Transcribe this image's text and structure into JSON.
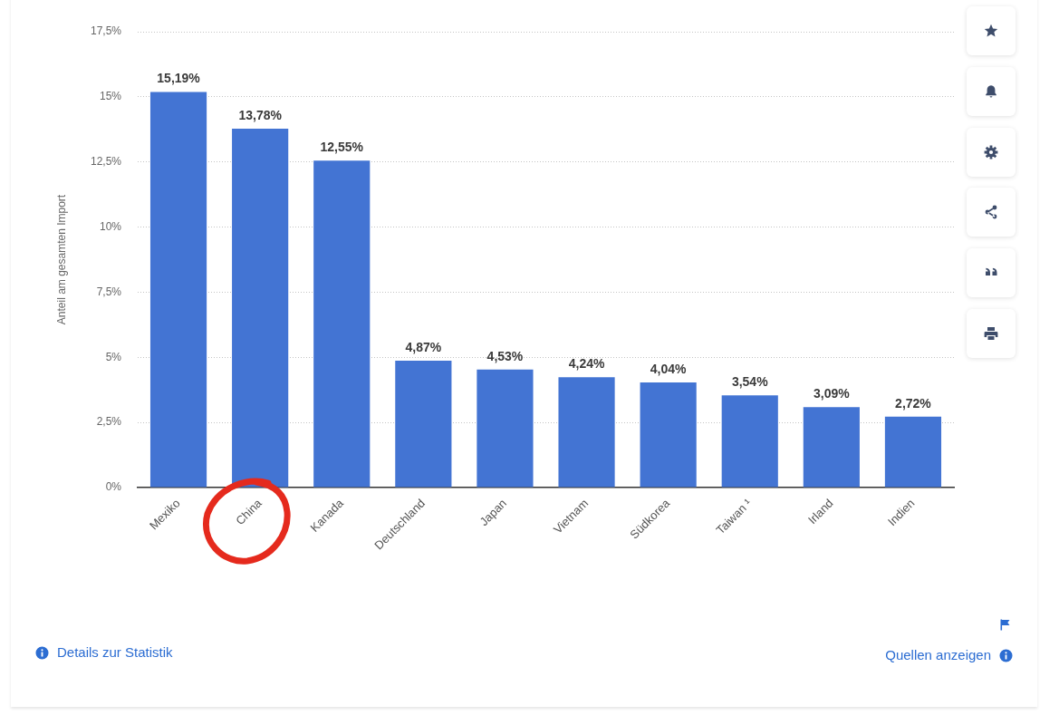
{
  "chart_data": {
    "type": "bar",
    "ylabel": "Anteil am gesamten Import",
    "categories": [
      "Mexiko",
      "China",
      "Kanada",
      "Deutschland",
      "Japan",
      "Vietnam",
      "Südkorea",
      "Taiwan ¹",
      "Irland",
      "Indien"
    ],
    "values": [
      15.19,
      13.78,
      12.55,
      4.87,
      4.53,
      4.24,
      4.04,
      3.54,
      3.09,
      2.72
    ],
    "value_labels": [
      "15,19%",
      "13,78%",
      "12,55%",
      "4,87%",
      "4,53%",
      "4,24%",
      "4,04%",
      "3,54%",
      "3,09%",
      "2,72%"
    ],
    "color": "#4374d3",
    "ylim": [
      0,
      17.5
    ],
    "yticks": [
      {
        "value": 0,
        "label": "0%"
      },
      {
        "value": 2.5,
        "label": "2,5%"
      },
      {
        "value": 5,
        "label": "5%"
      },
      {
        "value": 7.5,
        "label": "7,5%"
      },
      {
        "value": 10,
        "label": "10%"
      },
      {
        "value": 12.5,
        "label": "12,5%"
      },
      {
        "value": 15,
        "label": "15%"
      },
      {
        "value": 17.5,
        "label": "17,5%"
      }
    ],
    "grid": "y",
    "annotations": [
      "Details zur Statistik",
      "Quellen anzeigen"
    ]
  }
}
